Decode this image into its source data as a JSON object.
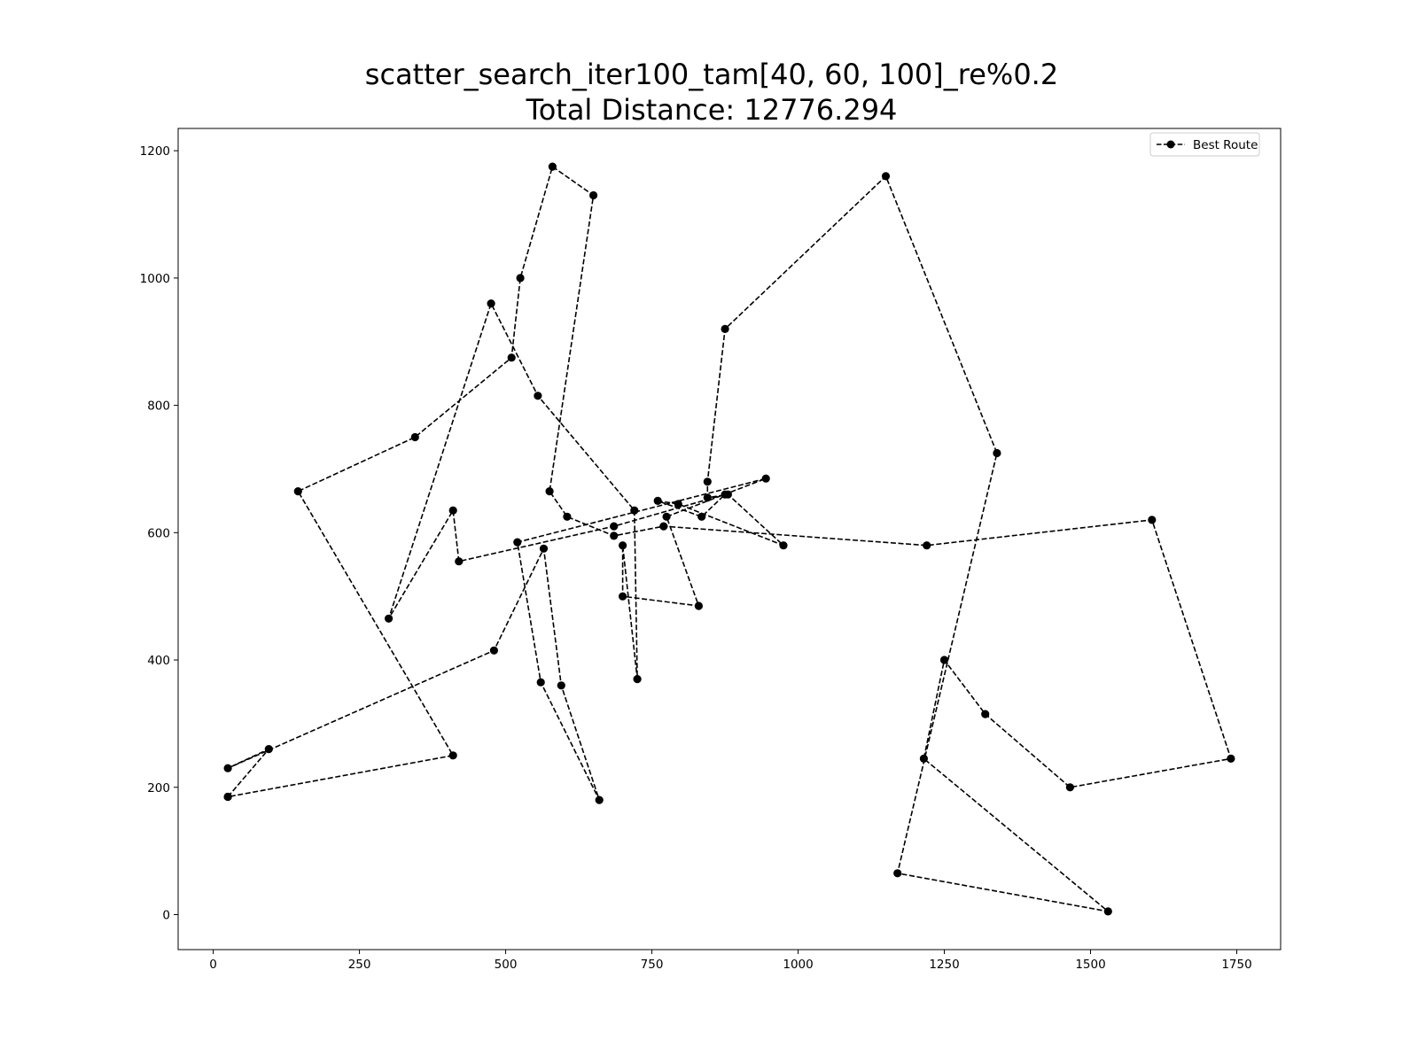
{
  "chart_data": {
    "type": "line",
    "title": "scatter_search_iter100_tam[40, 60, 100]_re%0.2",
    "subtitle": "Total Distance: 12776.294",
    "xlabel": "",
    "ylabel": "",
    "xlim": [
      -60,
      1825
    ],
    "ylim": [
      -55,
      1235
    ],
    "xticks": [
      0,
      250,
      500,
      750,
      1000,
      1250,
      1500,
      1750
    ],
    "yticks": [
      0,
      200,
      400,
      600,
      800,
      1000,
      1200
    ],
    "grid": false,
    "legend_position": "top-right",
    "series": [
      {
        "name": "Best Route",
        "color": "#000000",
        "line_style": "dashed",
        "marker": "circle",
        "x": [
          25,
          95,
          25,
          480,
          565,
          595,
          660,
          560,
          520,
          945,
          775,
          830,
          700,
          700,
          725,
          720,
          555,
          475,
          300,
          410,
          420,
          685,
          875,
          835,
          760,
          795,
          975,
          880,
          845,
          845,
          875,
          1150,
          1340,
          1170,
          1530,
          1215,
          1250,
          1320,
          1465,
          1740,
          1605,
          1220,
          770,
          685,
          605,
          575,
          650,
          580,
          525,
          510,
          345,
          145,
          410,
          25
        ],
        "y": [
          185,
          260,
          230,
          415,
          575,
          360,
          180,
          365,
          585,
          685,
          625,
          485,
          500,
          580,
          370,
          635,
          815,
          960,
          465,
          635,
          555,
          610,
          660,
          625,
          650,
          645,
          580,
          660,
          655,
          680,
          920,
          1160,
          725,
          65,
          5,
          245,
          400,
          315,
          200,
          245,
          620,
          580,
          610,
          595,
          625,
          665,
          1130,
          1175,
          1000,
          875,
          750,
          665,
          250,
          185
        ]
      }
    ]
  }
}
